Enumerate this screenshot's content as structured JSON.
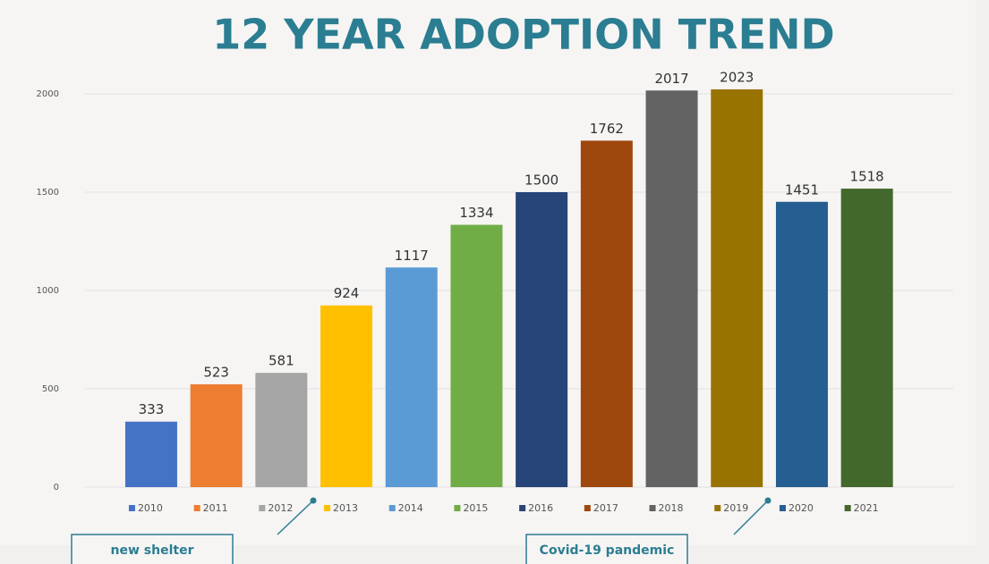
{
  "chart_data": {
    "type": "bar",
    "title": "12 YEAR ADOPTION TREND",
    "categories": [
      "2010",
      "2011",
      "2012",
      "2013",
      "2014",
      "2015",
      "2016",
      "2017",
      "2018",
      "2019",
      "2020",
      "2021"
    ],
    "values": [
      333,
      523,
      581,
      924,
      1117,
      1334,
      1500,
      1762,
      2017,
      2023,
      1451,
      1518
    ],
    "colors": [
      "#4472c4",
      "#ed7d31",
      "#a5a5a5",
      "#ffc000",
      "#5b9bd5",
      "#70ad47",
      "#264478",
      "#9e480e",
      "#636363",
      "#997300",
      "#255e91",
      "#43682b"
    ],
    "ylim": [
      0,
      2200
    ],
    "yticks": [
      0,
      500,
      1000,
      1500,
      2000
    ],
    "grid": true,
    "annotations": [
      {
        "text": "new shelter"
      },
      {
        "text": "Covid-19 pandemic"
      }
    ]
  }
}
